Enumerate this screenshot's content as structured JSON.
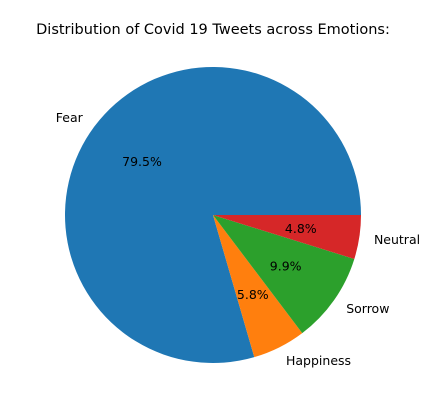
{
  "chart_data": {
    "type": "pie",
    "title": "Distribution of Covid 19 Tweets across Emotions:",
    "start_angle_deg": 0,
    "direction": "counterclockwise",
    "slices": [
      {
        "label": "Fear",
        "value": 79.5,
        "pct_label": "79.5%",
        "color": "#1f77b4"
      },
      {
        "label": "Happiness",
        "value": 5.8,
        "pct_label": "5.8%",
        "color": "#ff7f0e"
      },
      {
        "label": "Sorrow",
        "value": 9.9,
        "pct_label": "9.9%",
        "color": "#2ca02c"
      },
      {
        "label": "Neutral",
        "value": 4.8,
        "pct_label": "4.8%",
        "color": "#d62728"
      }
    ]
  }
}
